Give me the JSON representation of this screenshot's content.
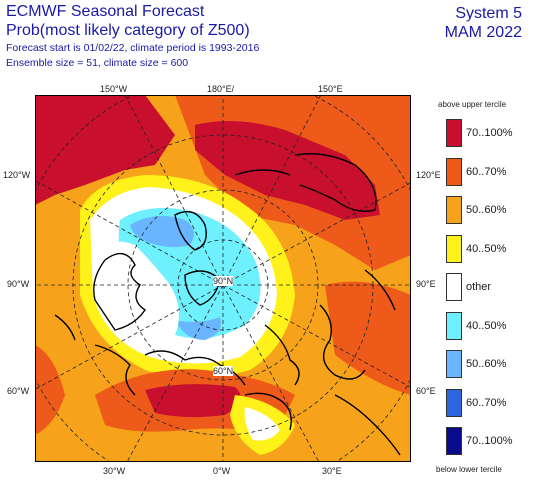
{
  "header": {
    "title": "ECMWF Seasonal Forecast",
    "subtitle": "Prob(most likely category of Z500)",
    "forecast_line": "Forecast start is 01/02/22, climate period is 1993-2016",
    "ensemble_line": "Ensemble size = 51, climate size = 600",
    "system": "System 5",
    "season": "MAM 2022"
  },
  "map": {
    "projection": "north polar stereographic",
    "lon_labels": {
      "top": [
        "150°W",
        "180°E/",
        "150°E"
      ],
      "left": [
        "120°W",
        "90°W",
        "60°W"
      ],
      "right": [
        "120°E",
        "90°E",
        "60°E"
      ],
      "bottom": [
        "30°W",
        "0°W",
        "30°E"
      ]
    },
    "lat_labels": [
      "90°N",
      "60°N"
    ]
  },
  "legend": {
    "top_title": "above upper tercile",
    "bottom_title": "below lower tercile",
    "items": [
      {
        "label": "70..100%",
        "color": "#c8102e"
      },
      {
        "label": "60..70%",
        "color": "#ee5a1a"
      },
      {
        "label": "50..60%",
        "color": "#f7a21b"
      },
      {
        "label": "40..50%",
        "color": "#fff21a"
      },
      {
        "label": "other",
        "color": "#ffffff"
      },
      {
        "label": "40..50%",
        "color": "#6ff0ff"
      },
      {
        "label": "50..60%",
        "color": "#69b5ff"
      },
      {
        "label": "60..70%",
        "color": "#2f66e0"
      },
      {
        "label": "70..100%",
        "color": "#0a0a8c"
      }
    ]
  }
}
